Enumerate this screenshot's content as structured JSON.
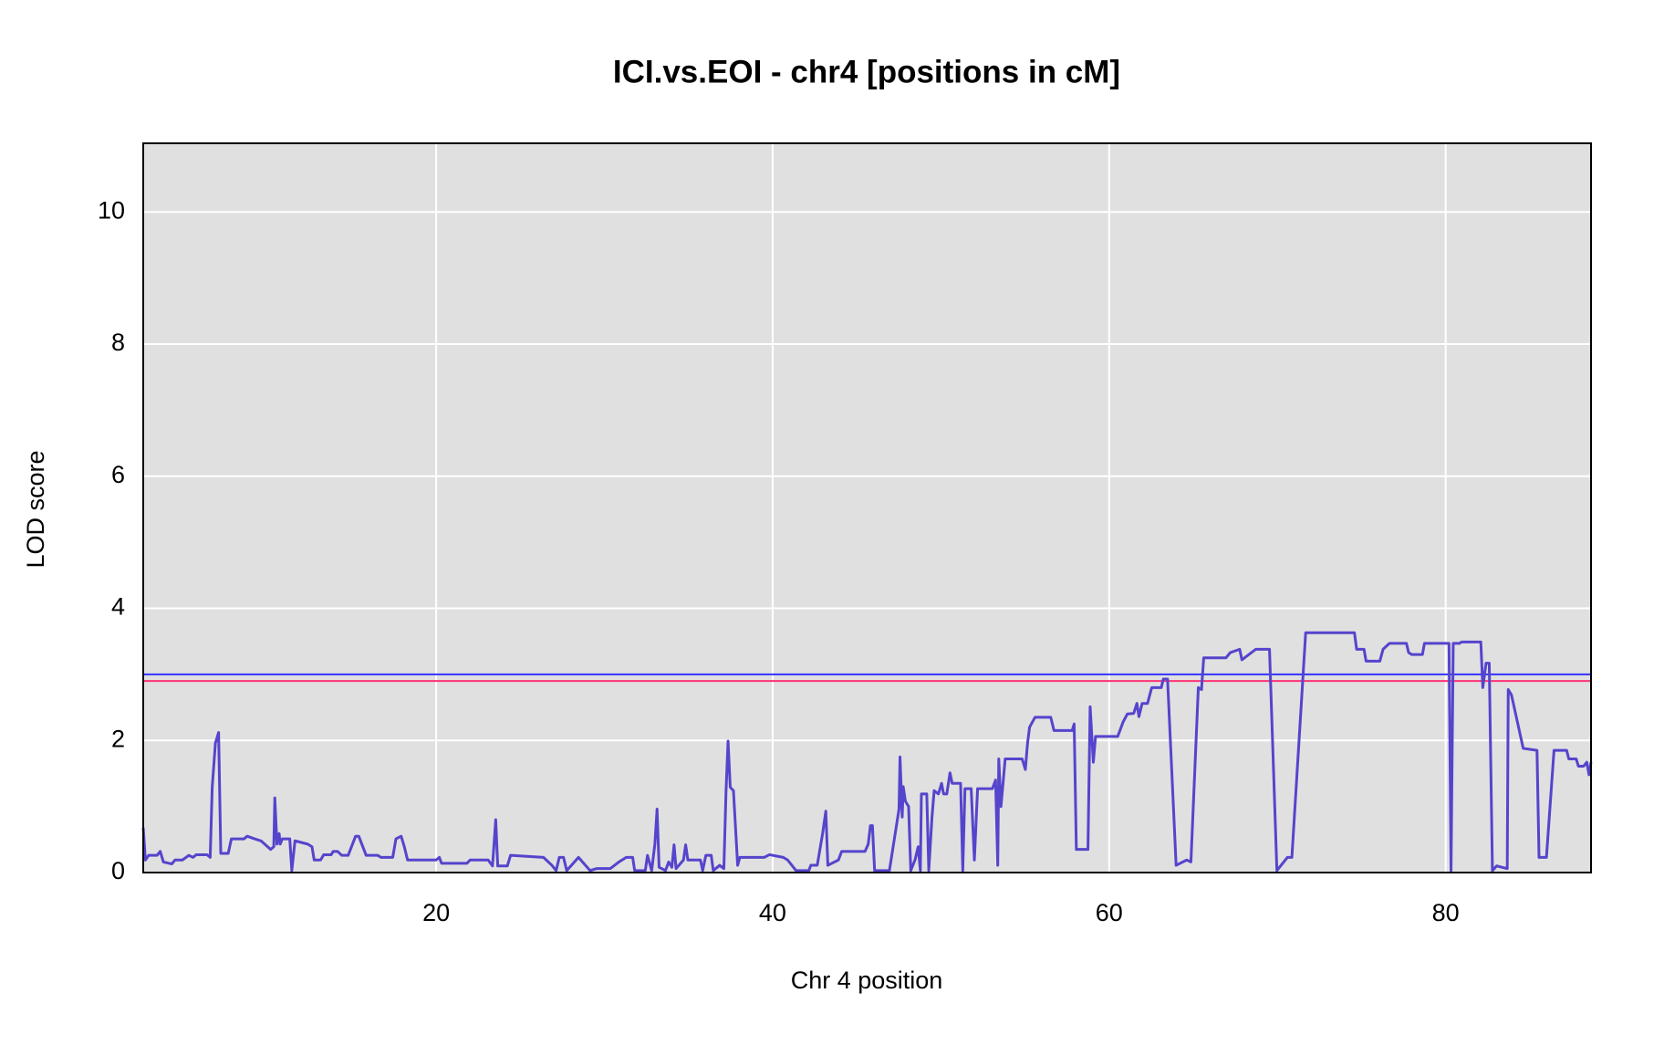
{
  "chart_data": {
    "type": "line",
    "title": "ICI.vs.EOI - chr4 [positions in cM]",
    "x_label": "Chr 4 position",
    "y_label": "LOD score",
    "xlim": [
      2.59,
      88.64
    ],
    "ylim": [
      0,
      11.04
    ],
    "xticks": [
      20,
      40,
      60,
      80
    ],
    "yticks": [
      0,
      2,
      4,
      6,
      8,
      10
    ],
    "grid": true,
    "color": "#5544cc",
    "thresholds": [
      {
        "value": 3.0,
        "color": "#3333ff"
      },
      {
        "value": 2.9,
        "color": "#ff3377"
      }
    ],
    "x": [
      2.59,
      2.72,
      2.91,
      3.41,
      3.6,
      3.79,
      4.29,
      4.48,
      4.92,
      5.3,
      5.55,
      5.74,
      6.38,
      6.57,
      6.69,
      6.88,
      7.07,
      7.2,
      7.64,
      7.83,
      8.58,
      8.77,
      9.21,
      9.59,
      10.16,
      10.35,
      10.41,
      10.54,
      10.67,
      10.73,
      10.86,
      11.3,
      11.42,
      11.61,
      12.37,
      12.62,
      12.75,
      13.13,
      13.32,
      13.76,
      13.88,
      14.14,
      14.39,
      14.77,
      15.21,
      15.4,
      15.84,
      16.53,
      16.72,
      17.42,
      17.61,
      17.92,
      18.11,
      18.3,
      20.0,
      20.19,
      20.32,
      21.83,
      22.02,
      23.09,
      23.35,
      23.54,
      23.66,
      24.23,
      24.42,
      26.38,
      26.88,
      27.13,
      27.32,
      27.57,
      27.76,
      28.46,
      29.15,
      29.53,
      30.35,
      30.86,
      31.3,
      31.68,
      31.8,
      32.43,
      32.56,
      32.81,
      33.0,
      33.13,
      33.25,
      33.63,
      33.82,
      34.01,
      34.14,
      34.26,
      34.7,
      34.83,
      34.96,
      35.71,
      35.84,
      36.03,
      36.35,
      36.47,
      36.85,
      37.1,
      37.23,
      37.35,
      37.48,
      37.67,
      37.92,
      38.05,
      39.5,
      39.81,
      40.63,
      40.89,
      41.39,
      42.15,
      42.27,
      42.65,
      42.97,
      43.16,
      43.28,
      43.91,
      44.1,
      45.49,
      45.68,
      45.81,
      45.93,
      46.06,
      46.94,
      47.51,
      47.57,
      47.7,
      47.76,
      47.89,
      48.08,
      48.21,
      48.46,
      48.65,
      48.78,
      48.84,
      49.16,
      49.28,
      49.47,
      49.6,
      49.85,
      50.04,
      50.16,
      50.35,
      50.54,
      50.67,
      51.17,
      51.3,
      51.43,
      51.8,
      51.99,
      52.18,
      53.06,
      53.25,
      53.38,
      53.44,
      53.57,
      53.82,
      54.83,
      55.02,
      55.15,
      55.27,
      55.59,
      56.53,
      56.72,
      57.8,
      57.92,
      58.05,
      58.74,
      58.87,
      59.06,
      59.19,
      60.51,
      60.83,
      61.08,
      61.46,
      61.65,
      61.77,
      61.96,
      62.28,
      62.53,
      63.1,
      63.22,
      63.47,
      63.98,
      64.61,
      64.86,
      65.3,
      65.49,
      65.62,
      66.94,
      67.2,
      67.76,
      67.89,
      68.71,
      69.53,
      69.97,
      70.6,
      70.86,
      71.68,
      74.58,
      74.71,
      75.15,
      75.27,
      76.09,
      76.28,
      76.66,
      77.67,
      77.8,
      77.99,
      78.62,
      78.74,
      80.2,
      80.32,
      80.45,
      80.83,
      80.95,
      82.09,
      82.21,
      82.4,
      82.59,
      82.78,
      83.03,
      83.66,
      83.72,
      83.91,
      84.61,
      85.43,
      85.55,
      85.99,
      86.44,
      87.19,
      87.32,
      87.76,
      87.89,
      88.2,
      88.39,
      88.52,
      88.64
    ],
    "values": [
      0.68,
      0.19,
      0.26,
      0.26,
      0.32,
      0.16,
      0.13,
      0.19,
      0.19,
      0.26,
      0.23,
      0.27,
      0.27,
      0.23,
      1.29,
      1.96,
      2.12,
      0.29,
      0.29,
      0.51,
      0.51,
      0.55,
      0.51,
      0.48,
      0.35,
      0.39,
      1.13,
      0.43,
      0.59,
      0.43,
      0.51,
      0.51,
      0.03,
      0.48,
      0.43,
      0.39,
      0.19,
      0.19,
      0.27,
      0.27,
      0.32,
      0.32,
      0.26,
      0.26,
      0.55,
      0.55,
      0.26,
      0.26,
      0.23,
      0.23,
      0.51,
      0.55,
      0.39,
      0.19,
      0.19,
      0.23,
      0.14,
      0.14,
      0.19,
      0.19,
      0.1,
      0.8,
      0.1,
      0.1,
      0.26,
      0.23,
      0.11,
      0.03,
      0.23,
      0.23,
      0.03,
      0.23,
      0.03,
      0.06,
      0.06,
      0.16,
      0.23,
      0.23,
      0.03,
      0.03,
      0.26,
      0.03,
      0.43,
      0.96,
      0.08,
      0.03,
      0.16,
      0.08,
      0.42,
      0.06,
      0.19,
      0.42,
      0.19,
      0.19,
      0.03,
      0.26,
      0.26,
      0.03,
      0.11,
      0.06,
      1.24,
      1.99,
      1.29,
      1.24,
      0.11,
      0.23,
      0.23,
      0.27,
      0.23,
      0.19,
      0.03,
      0.03,
      0.11,
      0.11,
      0.59,
      0.93,
      0.11,
      0.19,
      0.32,
      0.32,
      0.43,
      0.71,
      0.71,
      0.03,
      0.03,
      0.96,
      1.75,
      0.84,
      1.3,
      1.08,
      1.0,
      0.03,
      0.19,
      0.39,
      0.03,
      1.19,
      1.19,
      0.03,
      0.84,
      1.24,
      1.19,
      1.35,
      1.19,
      1.19,
      1.51,
      1.35,
      1.35,
      0.03,
      1.27,
      1.27,
      0.19,
      1.27,
      1.27,
      1.4,
      0.11,
      1.72,
      1.0,
      1.72,
      1.72,
      1.56,
      1.96,
      2.2,
      2.35,
      2.35,
      2.15,
      2.15,
      2.25,
      0.35,
      0.35,
      2.51,
      1.67,
      2.06,
      2.06,
      2.28,
      2.4,
      2.41,
      2.56,
      2.36,
      2.56,
      2.56,
      2.8,
      2.8,
      2.93,
      2.93,
      0.11,
      0.19,
      0.16,
      2.8,
      2.77,
      3.25,
      3.25,
      3.33,
      3.38,
      3.22,
      3.38,
      3.38,
      0.03,
      0.23,
      0.23,
      3.63,
      3.63,
      3.38,
      3.38,
      3.2,
      3.2,
      3.38,
      3.47,
      3.47,
      3.33,
      3.3,
      3.3,
      3.47,
      3.47,
      0.03,
      3.47,
      3.47,
      3.49,
      3.49,
      2.8,
      3.17,
      3.17,
      0.03,
      0.1,
      0.06,
      2.77,
      2.69,
      1.88,
      1.85,
      0.23,
      0.23,
      1.85,
      1.85,
      1.72,
      1.72,
      1.61,
      1.61,
      1.67,
      1.48,
      1.67
    ]
  }
}
